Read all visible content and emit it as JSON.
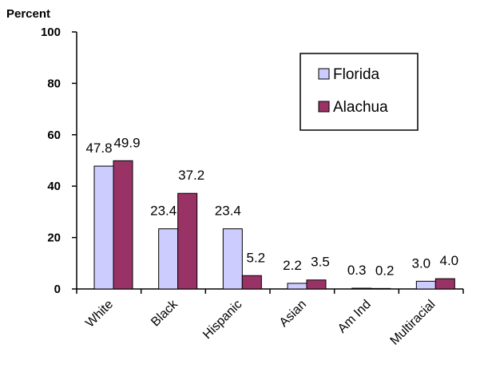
{
  "chart_data": {
    "type": "bar",
    "ylabel": "Percent",
    "xlabel": "",
    "ylim": [
      0,
      100
    ],
    "yticks": [
      0,
      20,
      40,
      60,
      80,
      100
    ],
    "categories": [
      "White",
      "Black",
      "Hispanic",
      "Asian",
      "Am Ind",
      "Multiracial"
    ],
    "series": [
      {
        "name": "Florida",
        "values": [
          47.8,
          23.4,
          23.4,
          2.2,
          0.3,
          3.0
        ],
        "labels": [
          "47.8",
          "23.4",
          "23.4",
          "2.2",
          "0.3",
          "3.0"
        ],
        "color": "#CCCCFF"
      },
      {
        "name": "Alachua",
        "values": [
          49.9,
          37.2,
          5.2,
          3.5,
          0.2,
          4.0
        ],
        "labels": [
          "49.9",
          "37.2",
          "5.2",
          "3.5",
          "0.2",
          "4.0"
        ],
        "color": "#993366"
      }
    ],
    "grid": false,
    "legend_position": "top-right"
  }
}
